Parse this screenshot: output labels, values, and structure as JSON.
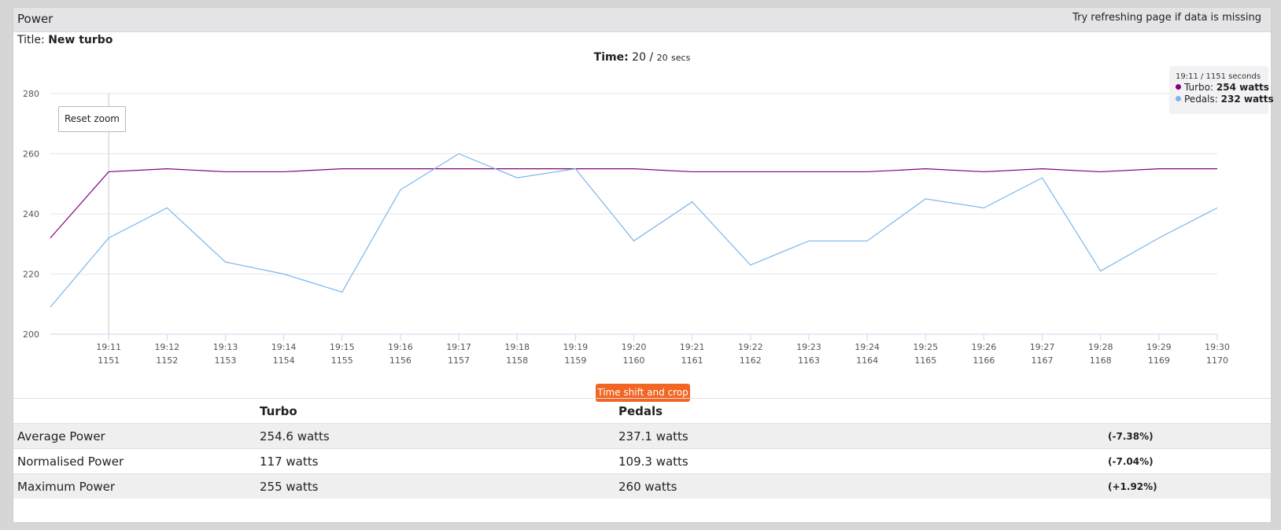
{
  "panel": {
    "title": "Power",
    "note": "Try refreshing page if data is missing"
  },
  "session": {
    "title_label": "Title:",
    "title_value": "New turbo",
    "time_label": "Time:",
    "time_value": "20 /",
    "time_total": "20",
    "time_unit": "secs"
  },
  "controls": {
    "reset_zoom": "Reset zoom",
    "time_shift": "Time shift and crop"
  },
  "tooltip": {
    "header": "19:11 / 1151 seconds",
    "rows": [
      {
        "name": "Turbo:",
        "value": "254 watts",
        "color": "#800080"
      },
      {
        "name": "Pedals:",
        "value": "232 watts",
        "color": "#7cb5ec"
      }
    ]
  },
  "chart_data": {
    "type": "line",
    "ylim": [
      200,
      280
    ],
    "yticks": [
      "200",
      "220",
      "240",
      "260",
      "280"
    ],
    "x_seconds": [
      1150,
      1151,
      1152,
      1153,
      1154,
      1155,
      1156,
      1157,
      1158,
      1159,
      1160,
      1161,
      1162,
      1163,
      1164,
      1165,
      1166,
      1167,
      1168,
      1169,
      1170
    ],
    "xticks": [
      {
        "time": "19:11",
        "sec": "1151"
      },
      {
        "time": "19:12",
        "sec": "1152"
      },
      {
        "time": "19:13",
        "sec": "1153"
      },
      {
        "time": "19:14",
        "sec": "1154"
      },
      {
        "time": "19:15",
        "sec": "1155"
      },
      {
        "time": "19:16",
        "sec": "1156"
      },
      {
        "time": "19:17",
        "sec": "1157"
      },
      {
        "time": "19:18",
        "sec": "1158"
      },
      {
        "time": "19:19",
        "sec": "1159"
      },
      {
        "time": "19:20",
        "sec": "1160"
      },
      {
        "time": "19:21",
        "sec": "1161"
      },
      {
        "time": "19:22",
        "sec": "1162"
      },
      {
        "time": "19:23",
        "sec": "1163"
      },
      {
        "time": "19:24",
        "sec": "1164"
      },
      {
        "time": "19:25",
        "sec": "1165"
      },
      {
        "time": "19:26",
        "sec": "1166"
      },
      {
        "time": "19:27",
        "sec": "1167"
      },
      {
        "time": "19:28",
        "sec": "1168"
      },
      {
        "time": "19:29",
        "sec": "1169"
      },
      {
        "time": "19:30",
        "sec": "1170"
      }
    ],
    "crosshair_sec": 1151,
    "grid": true,
    "series": [
      {
        "name": "Turbo",
        "color": "#800080",
        "values": [
          232,
          254,
          255,
          254,
          254,
          255,
          255,
          255,
          255,
          255,
          255,
          254,
          254,
          254,
          254,
          255,
          254,
          255,
          254,
          255,
          255
        ]
      },
      {
        "name": "Pedals",
        "color": "#7cb5ec",
        "values": [
          209,
          232,
          242,
          224,
          220,
          214,
          248,
          260,
          252,
          255,
          231,
          244,
          223,
          231,
          231,
          245,
          242,
          252,
          221,
          232,
          242
        ]
      }
    ]
  },
  "stats": {
    "headers": [
      "",
      "Turbo",
      "Pedals",
      ""
    ],
    "rows": [
      {
        "label": "Average Power",
        "turbo": "254.6 watts",
        "pedals": "237.1 watts",
        "diff": "(-7.38%)"
      },
      {
        "label": "Normalised Power",
        "turbo": "117 watts",
        "pedals": "109.3 watts",
        "diff": "(-7.04%)"
      },
      {
        "label": "Maximum Power",
        "turbo": "255 watts",
        "pedals": "260 watts",
        "diff": "(+1.92%)"
      }
    ]
  }
}
